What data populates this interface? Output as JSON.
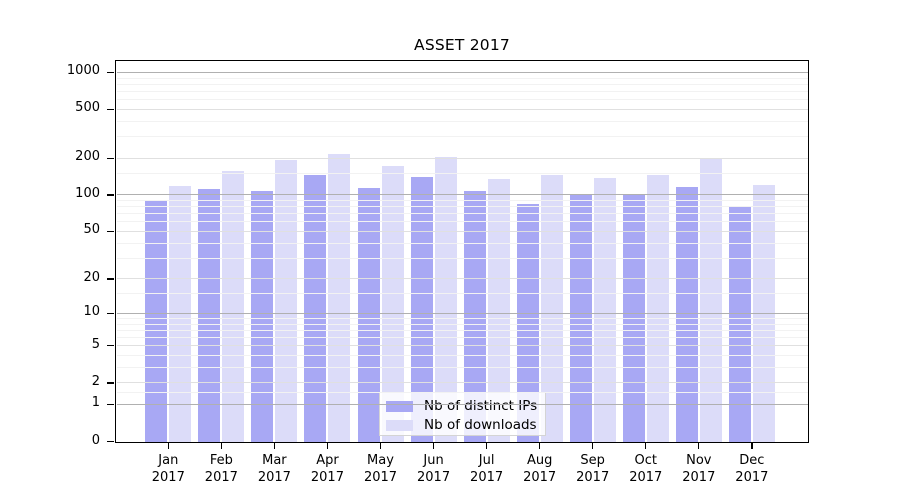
{
  "title": "ASSET 2017",
  "colors": {
    "background": "#ffffff",
    "ips_bar": "#a8a8f4",
    "downloads_bar": "#dcdcf9",
    "grid_major": "#b0b0b0",
    "grid_mid": "#e0e0e0",
    "grid_minor": "#f2f2f2",
    "axis": "#000000",
    "legend_border": "#d4d4d4",
    "text": "#000000"
  },
  "chart_data": {
    "type": "bar",
    "title": "ASSET 2017",
    "categories": [
      "Jan 2017",
      "Feb 2017",
      "Mar 2017",
      "Apr 2017",
      "May 2017",
      "Jun 2017",
      "Jul 2017",
      "Aug 2017",
      "Sep 2017",
      "Oct 2017",
      "Nov 2017",
      "Dec 2017"
    ],
    "series": [
      {
        "name": "Nb of distinct IPs",
        "color": "#a8a8f4",
        "values": [
          90,
          113,
          107,
          145,
          115,
          141,
          108,
          85,
          100,
          101,
          117,
          79
        ]
      },
      {
        "name": "Nb of downloads",
        "color": "#dcdcf9",
        "values": [
          118,
          156,
          193,
          218,
          172,
          204,
          135,
          145,
          139,
          145,
          199,
          120
        ]
      }
    ],
    "xlabel": "",
    "ylabel": "",
    "y_axis": {
      "scale": "mirror-log (position ~ log10(value+1))",
      "ticks": [
        0,
        1,
        2,
        5,
        10,
        20,
        50,
        100,
        200,
        500,
        1000
      ],
      "mid_ticks": [
        2,
        5,
        20,
        50,
        200,
        500
      ],
      "major_ticks": [
        1,
        10,
        100,
        1000
      ],
      "minor_ticks": [
        1.5,
        3,
        4,
        6,
        7,
        8,
        9,
        15,
        30,
        40,
        60,
        70,
        80,
        90,
        150,
        300,
        400,
        600,
        700,
        800,
        900
      ],
      "range": [
        0,
        1000
      ]
    },
    "grid": "on",
    "legend_position": "bottom-center-inside"
  }
}
